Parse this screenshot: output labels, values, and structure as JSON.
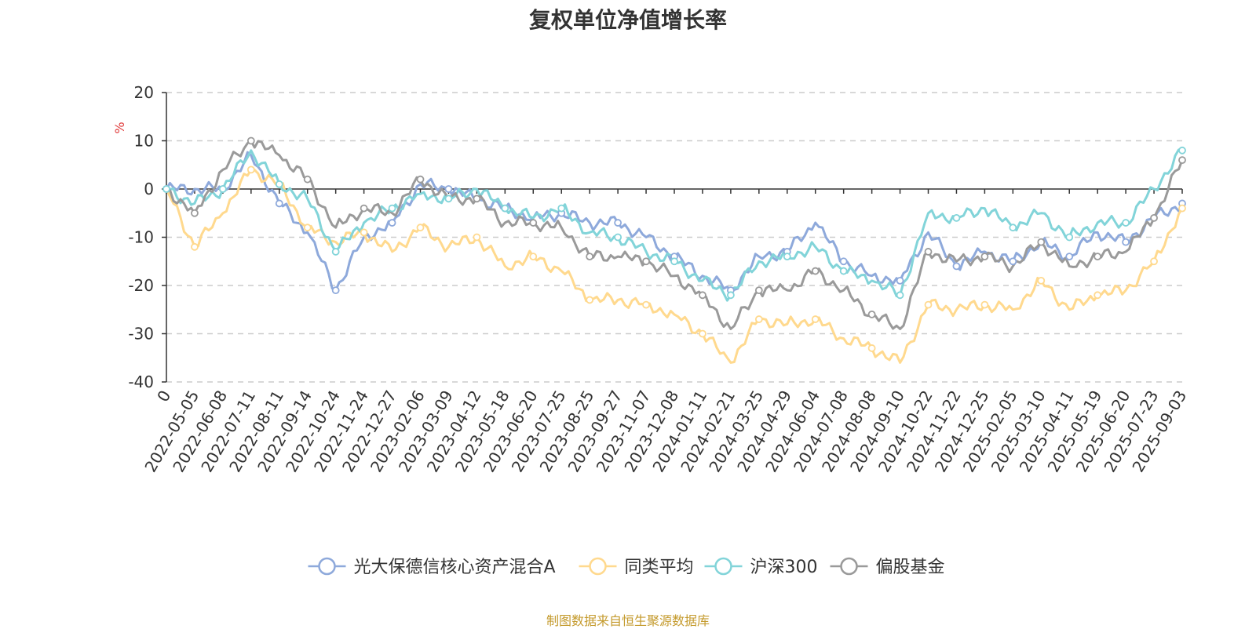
{
  "source": "制图数据来自恒生聚源数据库",
  "chart_data": {
    "type": "line",
    "title": "复权单位净值增长率",
    "ylabel": "%",
    "ylim": [
      -40,
      20
    ],
    "yticks": [
      20,
      10,
      0,
      -10,
      -20,
      -30,
      -40
    ],
    "grid": true,
    "legend_position": "bottom",
    "x_tick_labels": [
      "0",
      "2022-05-05",
      "2022-06-08",
      "2022-07-11",
      "2022-08-11",
      "2022-09-14",
      "2022-10-24",
      "2022-11-24",
      "2022-12-27",
      "2023-02-06",
      "2023-03-09",
      "2023-04-12",
      "2023-05-18",
      "2023-06-20",
      "2023-07-25",
      "2023-08-25",
      "2023-09-27",
      "2023-11-07",
      "2023-12-08",
      "2024-01-11",
      "2024-02-21",
      "2024-03-25",
      "2024-04-29",
      "2024-06-04",
      "2024-07-08",
      "2024-08-08",
      "2024-09-10",
      "2024-10-22",
      "2024-11-22",
      "2024-12-25",
      "2025-02-05",
      "2025-03-10",
      "2025-04-11",
      "2025-05-19",
      "2025-06-20",
      "2025-07-23",
      "2025-09-03"
    ],
    "series": [
      {
        "name": "光大保德信核心资产混合A",
        "color": "#8ea9db",
        "values": [
          0,
          0,
          0,
          7,
          -3,
          -9,
          -21,
          -10,
          -7,
          1,
          0,
          -2,
          -4,
          -6,
          -5,
          -7,
          -7,
          -10,
          -14,
          -18,
          -21,
          -14,
          -13,
          -7,
          -15,
          -18,
          -19,
          -9,
          -16,
          -13,
          -15,
          -11,
          -14,
          -9,
          -11,
          -6,
          -3
        ]
      },
      {
        "name": "同类平均",
        "color": "#ffd98e",
        "values": [
          0,
          -12,
          -5,
          4,
          1,
          -8,
          -11,
          -9,
          -13,
          -8,
          -12,
          -10,
          -16,
          -14,
          -17,
          -23,
          -23,
          -24,
          -26,
          -30,
          -36,
          -27,
          -28,
          -27,
          -31,
          -33,
          -36,
          -24,
          -25,
          -24,
          -25,
          -19,
          -25,
          -22,
          -21,
          -15,
          -4
        ]
      },
      {
        "name": "沪深300",
        "color": "#82d4d9",
        "values": [
          0,
          -3,
          0,
          8,
          1,
          -2,
          -13,
          -7,
          -4,
          -1,
          -2,
          0,
          -4,
          -6,
          -4,
          -9,
          -10,
          -13,
          -15,
          -19,
          -22,
          -15,
          -14,
          -12,
          -17,
          -19,
          -22,
          -5,
          -6,
          -4,
          -8,
          -5,
          -10,
          -7,
          -7,
          0,
          8
        ]
      },
      {
        "name": "偏股基金",
        "color": "#9a9a9a",
        "values": [
          0,
          -5,
          4,
          10,
          7,
          2,
          -8,
          -4,
          -5,
          2,
          -2,
          -2,
          -7,
          -7,
          -8,
          -14,
          -14,
          -15,
          -18,
          -22,
          -29,
          -21,
          -21,
          -17,
          -21,
          -26,
          -29,
          -13,
          -15,
          -14,
          -16,
          -11,
          -16,
          -14,
          -13,
          -6,
          6
        ]
      }
    ]
  }
}
